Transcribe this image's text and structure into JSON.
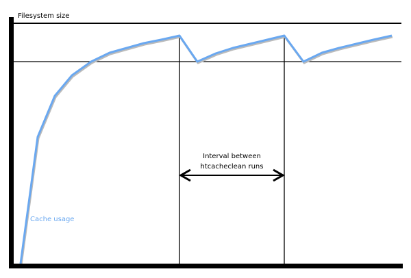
{
  "diagram": {
    "y_axis_label": "Filesystem size",
    "interval_label_line1": "Interval between",
    "interval_label_line2": "htcacheclean runs",
    "series_label": "Cache usage",
    "series_color": "#6aa8f0",
    "axis_color": "#000000"
  }
}
